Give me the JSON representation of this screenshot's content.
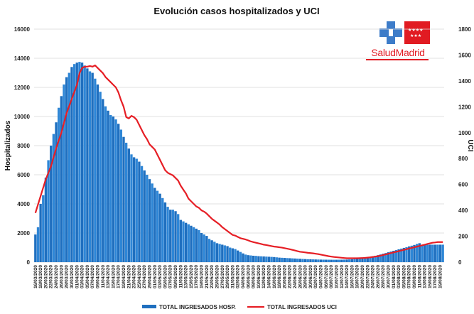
{
  "chart_data": {
    "type": "bar+line",
    "title": "Evolución casos hospitalizados y UCI",
    "ylabel_left": "Hospitalizados",
    "ylabel_right": "UCI",
    "ylim_left": [
      0,
      16000
    ],
    "ylim_right": [
      0,
      1800
    ],
    "yticks_left": [
      0,
      2000,
      4000,
      6000,
      8000,
      10000,
      12000,
      14000,
      16000
    ],
    "yticks_right": [
      0,
      200,
      400,
      600,
      800,
      1000,
      1200,
      1400,
      1600,
      1800
    ],
    "start_date": "2020-03-16",
    "end_date": "2020-08-20",
    "xtick_labels": [
      "16/03/2020",
      "18/03/2020",
      "20/03/2020",
      "22/03/2020",
      "24/03/2020",
      "26/03/2020",
      "28/03/2020",
      "30/03/2020",
      "01/04/2020",
      "03/04/2020",
      "05/04/2020",
      "07/04/2020",
      "09/04/2020",
      "11/04/2020",
      "13/04/2020",
      "15/04/2020",
      "17/04/2020",
      "19/04/2020",
      "21/04/2020",
      "23/04/2020",
      "25/04/2020",
      "27/04/2020",
      "29/04/2020",
      "01/05/2020",
      "03/05/2020",
      "05/05/2020",
      "07/05/2020",
      "09/05/2020",
      "11/05/2020",
      "13/05/2020",
      "15/05/2020",
      "17/05/2020",
      "19/05/2020",
      "21/05/2020",
      "23/05/2020",
      "25/05/2020",
      "27/05/2020",
      "29/05/2020",
      "31/05/2020",
      "02/06/2020",
      "04/06/2020",
      "06/06/2020",
      "08/06/2020",
      "10/06/2020",
      "12/06/2020",
      "14/06/2020",
      "16/06/2020",
      "18/06/2020",
      "20/06/2020",
      "22/06/2020",
      "24/06/2020",
      "26/06/2020",
      "28/06/2020",
      "30/06/2020",
      "02/07/2020",
      "04/07/2020",
      "06/07/2020",
      "08/07/2020",
      "10/07/2020",
      "12/07/2020",
      "14/07/2020",
      "16/07/2020",
      "18/07/2020",
      "20/07/2020",
      "22/07/2020",
      "24/07/2020",
      "26/07/2020",
      "28/07/2020",
      "30/07/2020",
      "01/08/2020",
      "03/08/2020",
      "05/08/2020",
      "07/08/2020",
      "09/08/2020",
      "11/08/2020",
      "13/08/2020",
      "15/08/2020",
      "17/08/2020",
      "19/08/2020"
    ],
    "hosp_keypoints": [
      [
        0,
        1900
      ],
      [
        1,
        2400
      ],
      [
        2,
        4000
      ],
      [
        3,
        4600
      ],
      [
        4,
        5800
      ],
      [
        5,
        7000
      ],
      [
        6,
        8000
      ],
      [
        7,
        8800
      ],
      [
        8,
        9600
      ],
      [
        9,
        10600
      ],
      [
        10,
        11400
      ],
      [
        11,
        12200
      ],
      [
        12,
        12700
      ],
      [
        13,
        13000
      ],
      [
        14,
        13400
      ],
      [
        15,
        13600
      ],
      [
        16,
        13700
      ],
      [
        17,
        13750
      ],
      [
        18,
        13700
      ],
      [
        19,
        13500
      ],
      [
        20,
        13300
      ],
      [
        21,
        13100
      ],
      [
        22,
        13000
      ],
      [
        23,
        12600
      ],
      [
        24,
        12200
      ],
      [
        25,
        11700
      ],
      [
        26,
        11200
      ],
      [
        27,
        10700
      ],
      [
        28,
        10400
      ],
      [
        29,
        10100
      ],
      [
        30,
        10000
      ],
      [
        31,
        9800
      ],
      [
        32,
        9500
      ],
      [
        33,
        9100
      ],
      [
        34,
        8600
      ],
      [
        35,
        8200
      ],
      [
        36,
        7800
      ],
      [
        37,
        7400
      ],
      [
        38,
        7200
      ],
      [
        39,
        7100
      ],
      [
        40,
        6900
      ],
      [
        41,
        6600
      ],
      [
        42,
        6300
      ],
      [
        43,
        6000
      ],
      [
        44,
        5700
      ],
      [
        45,
        5400
      ],
      [
        46,
        5100
      ],
      [
        47,
        4900
      ],
      [
        48,
        4700
      ],
      [
        49,
        4400
      ],
      [
        50,
        4100
      ],
      [
        51,
        3800
      ],
      [
        52,
        3600
      ],
      [
        53,
        3600
      ],
      [
        54,
        3500
      ],
      [
        55,
        3300
      ],
      [
        56,
        2900
      ],
      [
        57,
        2800
      ],
      [
        58,
        2700
      ],
      [
        59,
        2600
      ],
      [
        60,
        2500
      ],
      [
        61,
        2400
      ],
      [
        62,
        2300
      ],
      [
        63,
        2200
      ],
      [
        64,
        2000
      ],
      [
        65,
        1900
      ],
      [
        66,
        1800
      ],
      [
        67,
        1600
      ],
      [
        68,
        1500
      ],
      [
        69,
        1400
      ],
      [
        70,
        1300
      ],
      [
        71,
        1250
      ],
      [
        72,
        1200
      ],
      [
        73,
        1150
      ],
      [
        74,
        1100
      ],
      [
        75,
        1000
      ],
      [
        76,
        950
      ],
      [
        77,
        900
      ],
      [
        78,
        800
      ],
      [
        79,
        700
      ],
      [
        80,
        600
      ],
      [
        81,
        520
      ],
      [
        82,
        480
      ],
      [
        83,
        460
      ],
      [
        84,
        440
      ],
      [
        85,
        430
      ],
      [
        86,
        410
      ],
      [
        87,
        400
      ],
      [
        88,
        390
      ],
      [
        89,
        380
      ],
      [
        90,
        370
      ],
      [
        91,
        360
      ],
      [
        92,
        350
      ],
      [
        93,
        330
      ],
      [
        94,
        310
      ],
      [
        95,
        300
      ],
      [
        96,
        290
      ],
      [
        97,
        280
      ],
      [
        98,
        270
      ],
      [
        99,
        260
      ],
      [
        100,
        250
      ],
      [
        101,
        240
      ],
      [
        102,
        230
      ],
      [
        103,
        220
      ],
      [
        104,
        210
      ],
      [
        105,
        200
      ],
      [
        106,
        195
      ],
      [
        107,
        190
      ],
      [
        108,
        185
      ],
      [
        109,
        180
      ],
      [
        110,
        175
      ],
      [
        111,
        172
      ],
      [
        112,
        170
      ],
      [
        113,
        168
      ],
      [
        114,
        166
      ],
      [
        115,
        165
      ],
      [
        116,
        166
      ],
      [
        117,
        168
      ],
      [
        118,
        170
      ],
      [
        119,
        175
      ],
      [
        120,
        180
      ],
      [
        121,
        190
      ],
      [
        122,
        200
      ],
      [
        123,
        215
      ],
      [
        124,
        230
      ],
      [
        125,
        250
      ],
      [
        126,
        270
      ],
      [
        127,
        300
      ],
      [
        128,
        330
      ],
      [
        129,
        360
      ],
      [
        130,
        400
      ],
      [
        131,
        440
      ],
      [
        132,
        480
      ],
      [
        133,
        530
      ],
      [
        134,
        580
      ],
      [
        135,
        630
      ],
      [
        136,
        680
      ],
      [
        137,
        730
      ],
      [
        138,
        780
      ],
      [
        139,
        830
      ],
      [
        140,
        880
      ],
      [
        141,
        930
      ],
      [
        142,
        980
      ],
      [
        143,
        1030
      ],
      [
        144,
        1080
      ],
      [
        145,
        1130
      ],
      [
        146,
        1180
      ],
      [
        147,
        1250
      ],
      [
        148,
        1300
      ],
      [
        149,
        1150
      ],
      [
        150,
        1200
      ],
      [
        151,
        1200
      ],
      [
        152,
        1200
      ],
      [
        153,
        1200
      ],
      [
        154,
        1200
      ],
      [
        155,
        1200
      ],
      [
        156,
        1200
      ],
      [
        157,
        1200
      ]
    ],
    "uci_keypoints": [
      [
        0,
        380
      ],
      [
        2,
        510
      ],
      [
        4,
        640
      ],
      [
        6,
        740
      ],
      [
        8,
        880
      ],
      [
        10,
        1000
      ],
      [
        12,
        1150
      ],
      [
        14,
        1260
      ],
      [
        16,
        1370
      ],
      [
        17,
        1460
      ],
      [
        18,
        1500
      ],
      [
        19,
        1510
      ],
      [
        20,
        1510
      ],
      [
        21,
        1515
      ],
      [
        22,
        1510
      ],
      [
        23,
        1520
      ],
      [
        24,
        1500
      ],
      [
        25,
        1480
      ],
      [
        26,
        1460
      ],
      [
        27,
        1430
      ],
      [
        28,
        1410
      ],
      [
        29,
        1390
      ],
      [
        30,
        1370
      ],
      [
        31,
        1350
      ],
      [
        32,
        1310
      ],
      [
        33,
        1250
      ],
      [
        34,
        1200
      ],
      [
        35,
        1120
      ],
      [
        36,
        1110
      ],
      [
        37,
        1130
      ],
      [
        38,
        1120
      ],
      [
        39,
        1100
      ],
      [
        40,
        1060
      ],
      [
        41,
        1020
      ],
      [
        42,
        980
      ],
      [
        43,
        950
      ],
      [
        44,
        910
      ],
      [
        45,
        890
      ],
      [
        46,
        870
      ],
      [
        47,
        830
      ],
      [
        48,
        790
      ],
      [
        49,
        750
      ],
      [
        50,
        710
      ],
      [
        51,
        690
      ],
      [
        52,
        680
      ],
      [
        53,
        670
      ],
      [
        54,
        650
      ],
      [
        55,
        630
      ],
      [
        56,
        590
      ],
      [
        57,
        560
      ],
      [
        58,
        530
      ],
      [
        59,
        490
      ],
      [
        60,
        470
      ],
      [
        61,
        450
      ],
      [
        62,
        430
      ],
      [
        63,
        420
      ],
      [
        64,
        400
      ],
      [
        65,
        390
      ],
      [
        66,
        375
      ],
      [
        67,
        355
      ],
      [
        68,
        335
      ],
      [
        69,
        320
      ],
      [
        70,
        305
      ],
      [
        71,
        290
      ],
      [
        72,
        270
      ],
      [
        73,
        255
      ],
      [
        74,
        240
      ],
      [
        75,
        225
      ],
      [
        76,
        210
      ],
      [
        77,
        205
      ],
      [
        78,
        195
      ],
      [
        79,
        185
      ],
      [
        80,
        180
      ],
      [
        81,
        175
      ],
      [
        82,
        168
      ],
      [
        83,
        160
      ],
      [
        84,
        155
      ],
      [
        85,
        150
      ],
      [
        86,
        145
      ],
      [
        87,
        140
      ],
      [
        88,
        135
      ],
      [
        89,
        132
      ],
      [
        90,
        128
      ],
      [
        91,
        124
      ],
      [
        92,
        120
      ],
      [
        93,
        118
      ],
      [
        94,
        115
      ],
      [
        95,
        112
      ],
      [
        96,
        108
      ],
      [
        97,
        104
      ],
      [
        98,
        100
      ],
      [
        99,
        95
      ],
      [
        100,
        90
      ],
      [
        101,
        85
      ],
      [
        102,
        80
      ],
      [
        103,
        78
      ],
      [
        104,
        75
      ],
      [
        105,
        72
      ],
      [
        106,
        70
      ],
      [
        107,
        68
      ],
      [
        108,
        65
      ],
      [
        109,
        62
      ],
      [
        110,
        58
      ],
      [
        111,
        54
      ],
      [
        112,
        50
      ],
      [
        113,
        46
      ],
      [
        114,
        43
      ],
      [
        115,
        40
      ],
      [
        116,
        38
      ],
      [
        117,
        36
      ],
      [
        118,
        34
      ],
      [
        119,
        32
      ],
      [
        120,
        30
      ],
      [
        121,
        30
      ],
      [
        122,
        30
      ],
      [
        123,
        30
      ],
      [
        124,
        30
      ],
      [
        125,
        31
      ],
      [
        126,
        32
      ],
      [
        127,
        33
      ],
      [
        128,
        35
      ],
      [
        129,
        37
      ],
      [
        130,
        40
      ],
      [
        131,
        43
      ],
      [
        132,
        46
      ],
      [
        133,
        50
      ],
      [
        134,
        55
      ],
      [
        135,
        60
      ],
      [
        136,
        65
      ],
      [
        137,
        70
      ],
      [
        138,
        75
      ],
      [
        139,
        80
      ],
      [
        140,
        85
      ],
      [
        141,
        90
      ],
      [
        142,
        95
      ],
      [
        143,
        100
      ],
      [
        144,
        105
      ],
      [
        145,
        110
      ],
      [
        146,
        115
      ],
      [
        147,
        120
      ],
      [
        148,
        125
      ],
      [
        149,
        130
      ],
      [
        150,
        135
      ],
      [
        151,
        140
      ],
      [
        152,
        145
      ],
      [
        153,
        150
      ],
      [
        154,
        152
      ],
      [
        155,
        155
      ],
      [
        156,
        155
      ],
      [
        157,
        155
      ]
    ],
    "legend": [
      "TOTAL INGRESADOS HOSP.",
      "TOTAL INGRESADOS UCI"
    ],
    "colors": {
      "bars": "#1f6fbf",
      "bars_highlight": "#2e86d6",
      "line": "#e61e25",
      "grid": "#d9d9d9"
    }
  },
  "logo": {
    "text": "SaludMadrid",
    "colors": {
      "red": "#e11b22",
      "blue": "#3d7cc9",
      "white": "#ffffff"
    }
  }
}
